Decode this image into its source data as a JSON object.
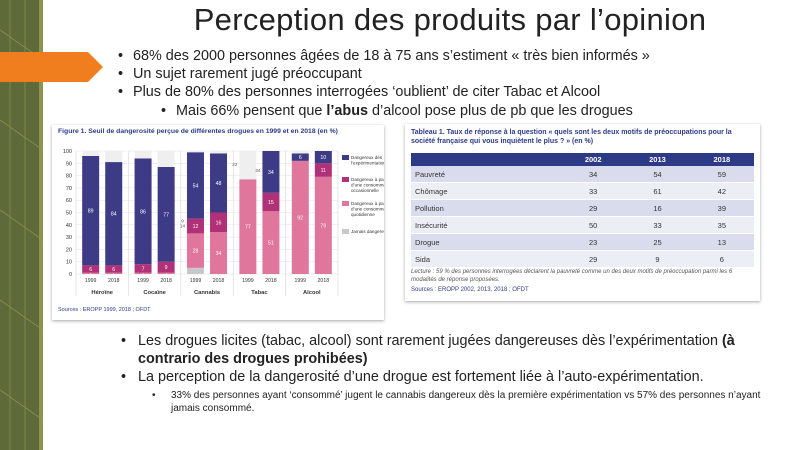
{
  "slide": {
    "title": "Perception des produits par l’opinion",
    "top_bullets": [
      "68% des 2000 personnes âgées de 18 à 75 ans s’estiment « très bien informés »",
      "Un sujet rarement jugé préoccupant",
      "Plus de 80% des personnes interrogées ‘oublient’ de citer Tabac et Alcool"
    ],
    "sub_bullet": {
      "before": "Mais 66% pensent que ",
      "bold": "l’abus",
      "after": " d’alcool pose plus de pb que les drogues"
    },
    "bottom_bullets": {
      "b1": {
        "text": "Les drogues licites (tabac, alcool) sont rarement jugées dangereuses dès l’expérimentation ",
        "bold": "(à contrario des drogues prohibées)"
      },
      "b2": "La perception de la dangerosité d’une drogue est fortement liée à l’auto-expérimentation.",
      "b3": "33% des personnes ayant ‘consommé’ jugent le cannabis dangereux dès la première expérimentation vs 57% des personnes n’ayant jamais consommé."
    }
  },
  "figure": {
    "title": "Figure 1. Seuil de dangerosité perçue de différentes drogues en 1999 et en 2018 (en %)",
    "source": "Sources : EROPP 1999, 2018 ; OFDT"
  },
  "chart_data": {
    "type": "bar",
    "stacked": true,
    "title": "Figure 1. Seuil de dangerosité perçue de différentes drogues en 1999 et en 2018 (en %)",
    "ylim": [
      0,
      100
    ],
    "yticks": [
      0,
      10,
      20,
      30,
      40,
      50,
      60,
      70,
      80,
      90,
      100
    ],
    "groups": [
      "Héroïne",
      "Cocaïne",
      "Cannabis",
      "Tabac",
      "Alcool"
    ],
    "categories": [
      "1999",
      "2018",
      "1999",
      "2018",
      "1999",
      "2018",
      "1999",
      "2018",
      "1999",
      "2018"
    ],
    "series": [
      {
        "name": "Jamais dangereux",
        "color": "#c8c8c8",
        "values": [
          0,
          0,
          0,
          0,
          5,
          0,
          0,
          0,
          0,
          0
        ],
        "labels": [
          "",
          "",
          "",
          "",
          "",
          "",
          "",
          "",
          "",
          ""
        ]
      },
      {
        "name": "Dangereux à partir d’une consommation quotidienne",
        "color": "#e0769c",
        "values": [
          1,
          1,
          1,
          1,
          28,
          34,
          77,
          51,
          92,
          79
        ],
        "labels": [
          "1",
          "1",
          "1",
          "1",
          "28",
          "34",
          "77",
          "51",
          "92",
          "79"
        ]
      },
      {
        "name": "Dangereux à partir d’une consommation occasionnelle",
        "color": "#b03178",
        "values": [
          6,
          6,
          7,
          9,
          12,
          16,
          0,
          15,
          0,
          11
        ],
        "labels": [
          "6",
          "6",
          "7",
          "9",
          "12",
          "16",
          "",
          "15",
          "",
          "11"
        ]
      },
      {
        "name": "Dangereux dès l’expérimentation",
        "color": "#3d3a86",
        "values": [
          89,
          84,
          86,
          77,
          54,
          48,
          0,
          34,
          6,
          10
        ],
        "labels": [
          "89",
          "84",
          "86",
          "77",
          "54",
          "48",
          "",
          "34",
          "6",
          "10"
        ]
      }
    ],
    "extra_labels": [
      "9",
      "14",
      "22",
      "34"
    ],
    "legend": "right"
  },
  "table": {
    "title": "Tableau 1. Taux de réponse à la question « quels sont les deux motifs de préoccupations pour la société française qui vous inquiètent le plus ? » (en %)",
    "headers": [
      "",
      "2002",
      "2013",
      "2018"
    ],
    "rows": [
      [
        "Pauvreté",
        "34",
        "54",
        "59"
      ],
      [
        "Chômage",
        "33",
        "61",
        "42"
      ],
      [
        "Pollution",
        "29",
        "16",
        "39"
      ],
      [
        "Insécurité",
        "50",
        "33",
        "35"
      ],
      [
        "Drogue",
        "23",
        "25",
        "13"
      ],
      [
        "Sida",
        "29",
        "9",
        "6"
      ]
    ],
    "lecture": "Lecture : 59 % des personnes interrogées déclarent la pauvreté comme un des deux motifs de préoccupation parmi les 6 modalités de réponse proposées.",
    "source": "Sources : EROPP 2002, 2013, 2018 ; OFDT"
  },
  "colors": {
    "sidebar": "#5f6a3a",
    "arrow": "#f07d1e",
    "navy": "#2d3a86"
  }
}
